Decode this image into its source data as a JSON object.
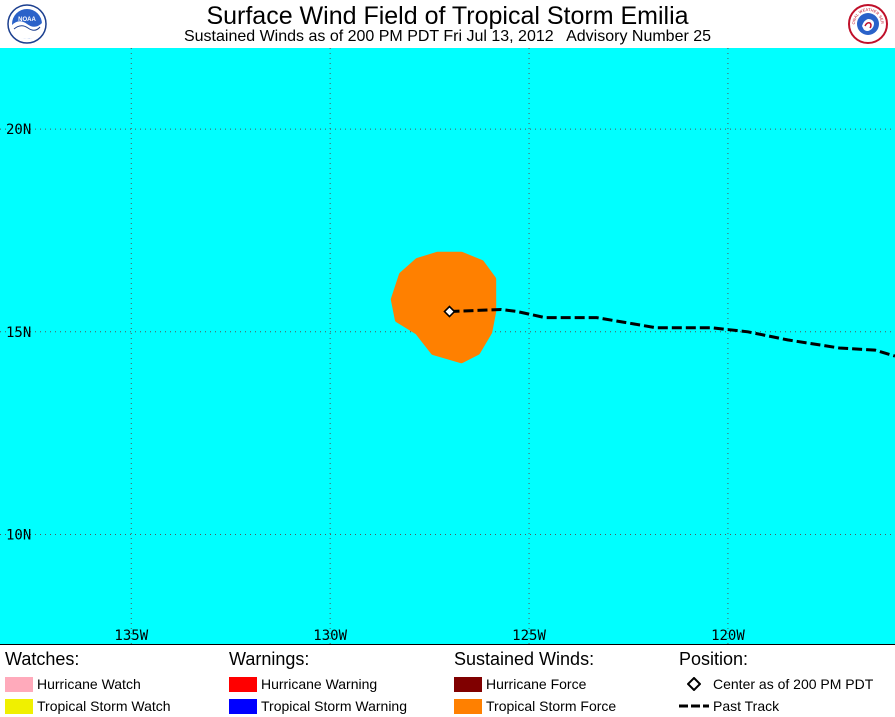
{
  "header": {
    "title": "Surface Wind Field of Tropical Storm Emilia",
    "subtitle": "Sustained Winds as of 200 PM PDT Fri Jul 13, 2012   Advisory Number 25",
    "left_logo": "noaa-logo",
    "left_logo_text": "NOAA",
    "right_logo": "national-weather-service-logo",
    "right_logo_text": "NATIONAL WEATHER SERVICE"
  },
  "colors": {
    "ocean": "#00FFFF",
    "grid": "#555555",
    "tropical_storm_force": "#FF8000",
    "hurricane_force": "#800000",
    "hurricane_watch": "#FFAABB",
    "tropical_storm_watch": "#F0F000",
    "hurricane_warning": "#FF0000",
    "tropical_storm_warning": "#0000FF",
    "past_track": "#000000"
  },
  "map": {
    "lat_labels": [
      "20N",
      "15N",
      "10N"
    ],
    "lon_labels": [
      "135W",
      "130W",
      "125W",
      "120W"
    ],
    "lat_grid": [
      20,
      15,
      10
    ],
    "lon_grid": [
      -135,
      -130,
      -125,
      -120
    ],
    "lon_range": [
      -138.3,
      -115.8
    ],
    "lat_range": [
      7.3,
      22.0
    ],
    "center": {
      "lat": 15.5,
      "lon": -127.0,
      "icon": "diamond-icon"
    },
    "wind_field": {
      "label": "Tropical Storm Force",
      "polygon": [
        [
          -126.2,
          16.7
        ],
        [
          -125.9,
          16.3
        ],
        [
          -125.9,
          15.5
        ],
        [
          -126.0,
          15.0
        ],
        [
          -126.3,
          14.5
        ],
        [
          -126.7,
          14.3
        ],
        [
          -127.4,
          14.5
        ],
        [
          -127.8,
          15.0
        ],
        [
          -128.3,
          15.3
        ],
        [
          -128.4,
          15.8
        ],
        [
          -128.2,
          16.4
        ],
        [
          -127.8,
          16.75
        ],
        [
          -127.3,
          16.9
        ],
        [
          -126.7,
          16.9
        ]
      ]
    },
    "past_track": [
      [
        -127.0,
        15.5
      ],
      [
        -125.7,
        15.55
      ],
      [
        -125.3,
        15.5
      ],
      [
        -124.6,
        15.35
      ],
      [
        -123.3,
        15.35
      ],
      [
        -121.8,
        15.1
      ],
      [
        -120.4,
        15.1
      ],
      [
        -119.5,
        15.0
      ],
      [
        -118.5,
        14.8
      ],
      [
        -117.2,
        14.6
      ],
      [
        -116.3,
        14.55
      ],
      [
        -115.8,
        14.4
      ]
    ]
  },
  "legend": {
    "watches": {
      "heading": "Watches:",
      "items": [
        {
          "label": "Hurricane Watch",
          "color": "#FFAABB"
        },
        {
          "label": "Tropical Storm Watch",
          "color": "#F0F000"
        }
      ]
    },
    "warnings": {
      "heading": "Warnings:",
      "items": [
        {
          "label": "Hurricane Warning",
          "color": "#FF0000"
        },
        {
          "label": "Tropical Storm Warning",
          "color": "#0000FF"
        }
      ]
    },
    "winds": {
      "heading": "Sustained Winds:",
      "items": [
        {
          "label": "Hurricane Force",
          "color": "#800000"
        },
        {
          "label": "Tropical Storm Force",
          "color": "#FF8000"
        }
      ]
    },
    "position": {
      "heading": "Position:",
      "items": [
        {
          "label": "Center as of 200 PM PDT",
          "icon": "diamond-icon"
        },
        {
          "label": "Past Track",
          "icon": "dashed-line-icon"
        }
      ]
    }
  }
}
